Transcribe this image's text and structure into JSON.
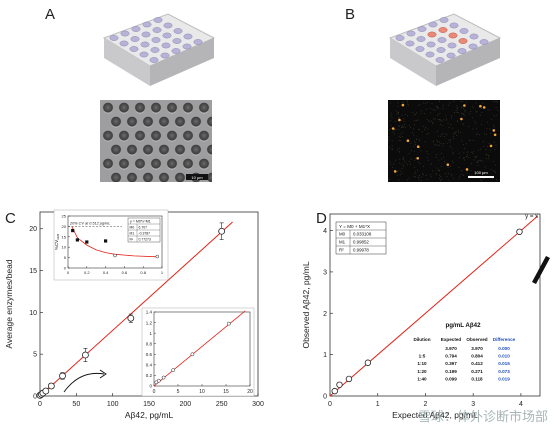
{
  "panels": {
    "a": "A",
    "b": "B",
    "c": "C",
    "d": "D"
  },
  "images": {
    "sem_scale": "10 µm",
    "fluor_scale": "100 µm"
  },
  "watermark": "雪球：体外诊断市场部",
  "chart_data": [
    {
      "type": "scatter",
      "name": "C-main",
      "xlabel": "Aβ42, pg/mL",
      "ylabel": "Average enzymes/bead",
      "xlim": [
        0,
        300
      ],
      "ylim": [
        0,
        22
      ],
      "x_ticks": [
        0,
        50,
        100,
        150,
        200,
        250,
        300
      ],
      "y_ticks": [
        0,
        5,
        10,
        15,
        20
      ],
      "points": [
        {
          "x": 0,
          "y": 0.08,
          "err": 0.1
        },
        {
          "x": 2,
          "y": 0.2,
          "err": 0.2
        },
        {
          "x": 4,
          "y": 0.35,
          "err": 0.2
        },
        {
          "x": 8,
          "y": 0.6,
          "err": 0.3
        },
        {
          "x": 15.6,
          "y": 1.2,
          "err": 0.3
        },
        {
          "x": 31,
          "y": 2.4,
          "err": 0.4
        },
        {
          "x": 62.5,
          "y": 4.9,
          "err": 0.8
        },
        {
          "x": 125,
          "y": 9.3,
          "err": 0.5
        },
        {
          "x": 250,
          "y": 19.7,
          "err": 1.0
        }
      ],
      "fit": {
        "x0": 0,
        "y0": 0,
        "x1": 265,
        "y1": 20.8,
        "color": "#e2231a"
      },
      "grid": false,
      "annotation": "arrow from low-concentration region to zoomed inset"
    },
    {
      "type": "scatter",
      "name": "C-inset-cv",
      "xlabel": "",
      "ylabel": "%CV",
      "ylabel_sub": "AEB",
      "xlim": [
        0,
        1
      ],
      "ylim": [
        0,
        25
      ],
      "x_ticks": [
        0,
        0.2,
        0.4,
        0.6,
        0.8,
        1
      ],
      "y_ticks": [
        0,
        5,
        10,
        15,
        20,
        25
      ],
      "threshold_label": "20% CV at 0.512 pg/mL",
      "threshold_y": 20,
      "points": [
        {
          "x": 0.05,
          "y": 18,
          "filled": true
        },
        {
          "x": 0.1,
          "y": 13.5,
          "filled": true
        },
        {
          "x": 0.2,
          "y": 12.5,
          "filled": true
        },
        {
          "x": 0.4,
          "y": 13,
          "filled": true
        },
        {
          "x": 0.5,
          "y": 6,
          "filled": false
        },
        {
          "x": 0.95,
          "y": 5.5,
          "filled": false
        }
      ],
      "fit_curve": [
        [
          0.04,
          20
        ],
        [
          0.1,
          14.5
        ],
        [
          0.2,
          11
        ],
        [
          0.3,
          8.7
        ],
        [
          0.4,
          7.4
        ],
        [
          0.5,
          6.6
        ],
        [
          0.7,
          5.8
        ],
        [
          0.95,
          5.4
        ]
      ],
      "fit_color": "#e2231a",
      "param_table": {
        "header": "y = M0*x^M1",
        "rows": [
          [
            "M0",
            "6.707"
          ],
          [
            "M1",
            "-0.3787"
          ],
          [
            "R²",
            "0.77273"
          ]
        ]
      }
    },
    {
      "type": "scatter",
      "name": "C-inset-zoom",
      "xlim": [
        0,
        20
      ],
      "ylim": [
        0,
        1.4
      ],
      "x_ticks": [
        0,
        5,
        10,
        15,
        20
      ],
      "y_ticks": [
        0,
        0.2,
        0.4,
        0.6,
        0.8,
        1,
        1.2,
        1.4
      ],
      "y_tick_labels": [
        "0",
        "0.2",
        "0.4",
        "0.6",
        "0.8",
        "1",
        "1.2",
        "1.4"
      ],
      "points": [
        {
          "x": 0.5,
          "y": 0.07
        },
        {
          "x": 1,
          "y": 0.1
        },
        {
          "x": 2,
          "y": 0.16
        },
        {
          "x": 4,
          "y": 0.3
        },
        {
          "x": 8,
          "y": 0.6
        },
        {
          "x": 15.6,
          "y": 1.18
        }
      ],
      "fit": {
        "x0": 0,
        "y0": 0,
        "x1": 19,
        "y1": 1.42,
        "color": "#e2231a"
      }
    },
    {
      "type": "scatter",
      "name": "D-main",
      "xlabel": "Expected Aβ42, pg/mL",
      "ylabel": "Observed Aβ42, pg/mL",
      "xlim": [
        0,
        4.4
      ],
      "ylim": [
        0,
        4.4
      ],
      "x_ticks": [
        0,
        1,
        2,
        3,
        4
      ],
      "y_ticks": [
        0,
        1,
        2,
        3,
        4
      ],
      "fit_label": "y = x",
      "points": [
        {
          "x": 0.099,
          "y": 0.118
        },
        {
          "x": 0.199,
          "y": 0.271
        },
        {
          "x": 0.397,
          "y": 0.412
        },
        {
          "x": 0.794,
          "y": 0.804
        },
        {
          "x": 3.97,
          "y": 3.97
        }
      ],
      "fit": {
        "x0": 0,
        "y0": 0,
        "x1": 4.35,
        "y1": 4.35,
        "color": "#e2231a"
      },
      "param_table": {
        "header": "Y = M0 + M1*X",
        "rows": [
          [
            "M0",
            "0.033108"
          ],
          [
            "M1",
            "0.99852"
          ],
          [
            "R²",
            "0.99978"
          ]
        ]
      },
      "data_table": {
        "title": "pg/mL Aβ42",
        "columns": [
          "Dilution",
          "Expected",
          "Observed",
          "Difference"
        ],
        "rows": [
          [
            "",
            "3.970",
            "3.970",
            "0.000"
          ],
          [
            "1:5",
            "0.794",
            "0.804",
            "0.010"
          ],
          [
            "1:10",
            "0.397",
            "0.412",
            "0.015"
          ],
          [
            "1:20",
            "0.199",
            "0.271",
            "0.073"
          ],
          [
            "1:40",
            "0.099",
            "0.118",
            "0.019"
          ]
        ],
        "difference_color": "#1f4fbf"
      }
    }
  ]
}
